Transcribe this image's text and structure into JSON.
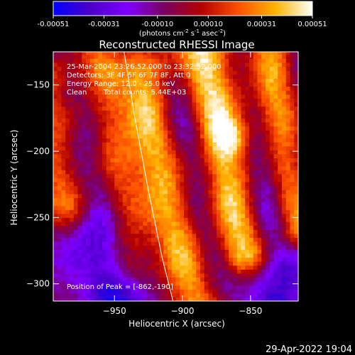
{
  "colorbar": {
    "tick_labels": [
      "-0.00051",
      "-0.00031",
      "-0.00010",
      "0.00010",
      "0.00031",
      "0.00051"
    ],
    "range": [
      -0.00051,
      0.00051
    ],
    "units_label": {
      "prefix": "(photons cm",
      "sup1": "-2",
      "mid1": " s",
      "sup2": "-1",
      "mid2": " asec",
      "sup3": "-2",
      "suffix": ")"
    },
    "colormap": [
      "#0000ff",
      "#4b00c8",
      "#7f00ff",
      "#7a0060",
      "#b40000",
      "#ff5000",
      "#ffb400",
      "#ffffff"
    ]
  },
  "chart_data": {
    "type": "heatmap",
    "title": "Reconstructed RHESSI Image",
    "xlabel": "Heliocentric X (arcsec)",
    "ylabel": "Heliocentric Y (arcsec)",
    "xlim": [
      -995,
      -815
    ],
    "ylim": [
      -313,
      -125
    ],
    "x_ticks": [
      -950,
      -900,
      -850
    ],
    "y_ticks": [
      -150,
      -200,
      -250,
      -300
    ],
    "annotations": [
      "25-Mar-2004 23:26:52.000 to 23:32:52.000",
      "Detectors: 3F 4F 5F 6F 7F 8F, Att 0",
      "Energy Range: 12.0 - 25.0 keV",
      "Clean",
      "Total counts: 5.44E+03"
    ],
    "peak_label": "Position of Peak = [-862,-190]",
    "peak_position": [
      -862,
      -190
    ],
    "limb_curve": {
      "x": [
        -943,
        -935,
        -925,
        -915,
        -907
      ],
      "y": [
        -125,
        -175,
        -230,
        -280,
        -313
      ]
    },
    "bright_ridges": [
      {
        "x": [
          -995,
          -990,
          -983
        ],
        "y": [
          -150,
          -195,
          -235
        ],
        "width": 16,
        "strength": 0.8
      },
      {
        "x": [
          -962,
          -950,
          -938
        ],
        "y": [
          -125,
          -205,
          -285
        ],
        "width": 12,
        "strength": 0.55
      },
      {
        "x": [
          -928,
          -920,
          -905,
          -890
        ],
        "y": [
          -140,
          -200,
          -255,
          -313
        ],
        "width": 14,
        "strength": 0.85
      },
      {
        "x": [
          -885,
          -870,
          -855
        ],
        "y": [
          -125,
          -200,
          -275
        ],
        "width": 14,
        "strength": 1.0
      },
      {
        "x": [
          -835,
          -828,
          -815
        ],
        "y": [
          -125,
          -190,
          -260
        ],
        "width": 11,
        "strength": 0.75
      }
    ],
    "dark_troughs": [
      {
        "x": [
          -985,
          -965,
          -945
        ],
        "y": [
          -160,
          -235,
          -313
        ],
        "width": 15,
        "strength": 0.9
      },
      {
        "x": [
          -905,
          -890,
          -875
        ],
        "y": [
          -150,
          -225,
          -300
        ],
        "width": 12,
        "strength": 0.6
      },
      {
        "x": [
          -845,
          -835,
          -825
        ],
        "y": [
          -200,
          -260,
          -313
        ],
        "width": 14,
        "strength": 0.7
      }
    ]
  },
  "footer": {
    "timestamp": "29-Apr-2022 19:04"
  }
}
